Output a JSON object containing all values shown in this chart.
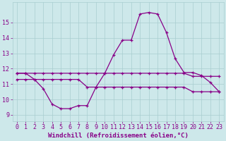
{
  "title": "",
  "xlabel": "Windchill (Refroidissement éolien,°C)",
  "ylabel": "",
  "background_color": "#cde8ea",
  "grid_color": "#a8cdd0",
  "line_color": "#880088",
  "xlim_min": -0.5,
  "xlim_max": 23.5,
  "ylim_min": 8.6,
  "ylim_max": 16.3,
  "xticks": [
    0,
    1,
    2,
    3,
    4,
    5,
    6,
    7,
    8,
    9,
    10,
    11,
    12,
    13,
    14,
    15,
    16,
    17,
    18,
    19,
    20,
    21,
    22,
    23
  ],
  "yticks": [
    9,
    10,
    11,
    12,
    13,
    14,
    15
  ],
  "series1_x": [
    0,
    1,
    2,
    3,
    4,
    5,
    6,
    7,
    8,
    9,
    10,
    11,
    12,
    13,
    14,
    15,
    16,
    17,
    18,
    19,
    20,
    21,
    22,
    23
  ],
  "series1_y": [
    11.7,
    11.7,
    11.7,
    11.7,
    11.7,
    11.7,
    11.7,
    11.7,
    11.7,
    11.7,
    11.7,
    11.7,
    11.7,
    11.7,
    11.7,
    11.7,
    11.7,
    11.7,
    11.7,
    11.7,
    11.5,
    11.5,
    11.5,
    11.5
  ],
  "series2_x": [
    0,
    1,
    2,
    3,
    4,
    5,
    6,
    7,
    8,
    9,
    10,
    11,
    12,
    13,
    14,
    15,
    16,
    17,
    18,
    19,
    20,
    21,
    22,
    23
  ],
  "series2_y": [
    11.7,
    11.7,
    11.3,
    10.7,
    9.7,
    9.4,
    9.4,
    9.6,
    9.6,
    10.8,
    11.7,
    12.9,
    13.85,
    13.85,
    15.55,
    15.65,
    15.55,
    14.35,
    12.65,
    11.75,
    11.75,
    11.55,
    11.1,
    10.5
  ],
  "series3_x": [
    0,
    1,
    2,
    3,
    4,
    5,
    6,
    7,
    8,
    9,
    10,
    11,
    12,
    13,
    14,
    15,
    16,
    17,
    18,
    19,
    20,
    21,
    22,
    23
  ],
  "series3_y": [
    11.3,
    11.3,
    11.3,
    11.3,
    11.3,
    11.3,
    11.3,
    11.3,
    10.8,
    10.8,
    10.8,
    10.8,
    10.8,
    10.8,
    10.8,
    10.8,
    10.8,
    10.8,
    10.8,
    10.8,
    10.5,
    10.5,
    10.5,
    10.5
  ],
  "xlabel_fontsize": 6.5,
  "tick_fontsize": 6,
  "tick_color": "#880088",
  "xlabel_color": "#880088",
  "spine_color": "#888888"
}
